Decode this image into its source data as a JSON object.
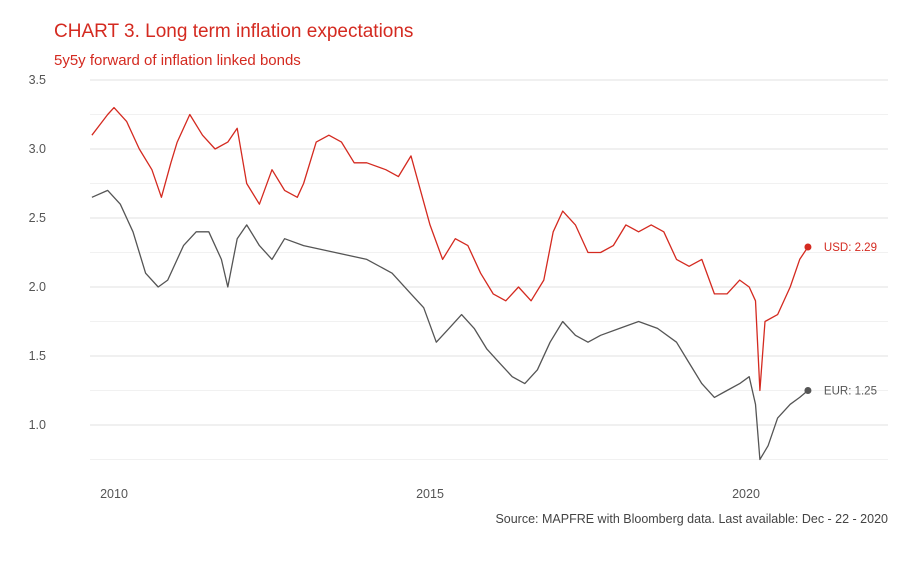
{
  "chart_data": {
    "type": "line",
    "title": "CHART 3. Long term inflation expectations",
    "subtitle": "5y5y forward of inflation linked bonds",
    "source": "Source: MAPFRE with Bloomberg data. Last available: Dec - 22 - 2020",
    "xlabel": "",
    "ylabel": "",
    "xlim": [
      2009.4,
      2022.3
    ],
    "ylim": [
      0.75,
      3.5
    ],
    "x_ticks": [
      "2010",
      "2015",
      "2020"
    ],
    "y_ticks": [
      "1.0",
      "1.5",
      "2.0",
      "2.5",
      "3.0",
      "3.5"
    ],
    "grid": true,
    "series": [
      {
        "name": "USD",
        "end_label": "USD: 2.29",
        "color": "#d42a20",
        "x": [
          2009.65,
          2009.9,
          2010.0,
          2010.2,
          2010.4,
          2010.6,
          2010.75,
          2010.9,
          2011.0,
          2011.2,
          2011.4,
          2011.6,
          2011.8,
          2011.95,
          2012.1,
          2012.3,
          2012.5,
          2012.7,
          2012.9,
          2013.0,
          2013.2,
          2013.4,
          2013.6,
          2013.8,
          2014.0,
          2014.3,
          2014.5,
          2014.7,
          2014.85,
          2015.0,
          2015.2,
          2015.4,
          2015.6,
          2015.8,
          2016.0,
          2016.2,
          2016.4,
          2016.6,
          2016.8,
          2016.95,
          2017.1,
          2017.3,
          2017.5,
          2017.7,
          2017.9,
          2018.1,
          2018.3,
          2018.5,
          2018.7,
          2018.9,
          2019.1,
          2019.3,
          2019.5,
          2019.7,
          2019.9,
          2020.05,
          2020.15,
          2020.22,
          2020.3,
          2020.5,
          2020.7,
          2020.85,
          2020.98
        ],
        "y": [
          3.1,
          3.25,
          3.3,
          3.2,
          3.0,
          2.85,
          2.65,
          2.9,
          3.05,
          3.25,
          3.1,
          3.0,
          3.05,
          3.15,
          2.75,
          2.6,
          2.85,
          2.7,
          2.65,
          2.75,
          3.05,
          3.1,
          3.05,
          2.9,
          2.9,
          2.85,
          2.8,
          2.95,
          2.7,
          2.45,
          2.2,
          2.35,
          2.3,
          2.1,
          1.95,
          1.9,
          2.0,
          1.9,
          2.05,
          2.4,
          2.55,
          2.45,
          2.25,
          2.25,
          2.3,
          2.45,
          2.4,
          2.45,
          2.4,
          2.2,
          2.15,
          2.2,
          1.95,
          1.95,
          2.05,
          2.0,
          1.9,
          1.25,
          1.75,
          1.8,
          2.0,
          2.2,
          2.29
        ]
      },
      {
        "name": "EUR",
        "end_label": "EUR: 1.25",
        "color": "#555555",
        "x": [
          2009.65,
          2009.9,
          2010.1,
          2010.3,
          2010.5,
          2010.7,
          2010.85,
          2011.1,
          2011.3,
          2011.5,
          2011.7,
          2011.8,
          2011.95,
          2012.1,
          2012.3,
          2012.5,
          2012.7,
          2013.0,
          2013.5,
          2014.0,
          2014.4,
          2014.7,
          2014.9,
          2015.1,
          2015.3,
          2015.5,
          2015.7,
          2015.9,
          2016.1,
          2016.3,
          2016.5,
          2016.7,
          2016.9,
          2017.1,
          2017.3,
          2017.5,
          2017.7,
          2018.0,
          2018.3,
          2018.6,
          2018.9,
          2019.1,
          2019.3,
          2019.5,
          2019.7,
          2019.9,
          2020.05,
          2020.15,
          2020.22,
          2020.35,
          2020.5,
          2020.7,
          2020.85,
          2020.98
        ],
        "y": [
          2.65,
          2.7,
          2.6,
          2.4,
          2.1,
          2.0,
          2.05,
          2.3,
          2.4,
          2.4,
          2.2,
          2.0,
          2.35,
          2.45,
          2.3,
          2.2,
          2.35,
          2.3,
          2.25,
          2.2,
          2.1,
          1.95,
          1.85,
          1.6,
          1.7,
          1.8,
          1.7,
          1.55,
          1.45,
          1.35,
          1.3,
          1.4,
          1.6,
          1.75,
          1.65,
          1.6,
          1.65,
          1.7,
          1.75,
          1.7,
          1.6,
          1.45,
          1.3,
          1.2,
          1.25,
          1.3,
          1.35,
          1.15,
          0.75,
          0.85,
          1.05,
          1.15,
          1.2,
          1.25
        ]
      }
    ]
  }
}
